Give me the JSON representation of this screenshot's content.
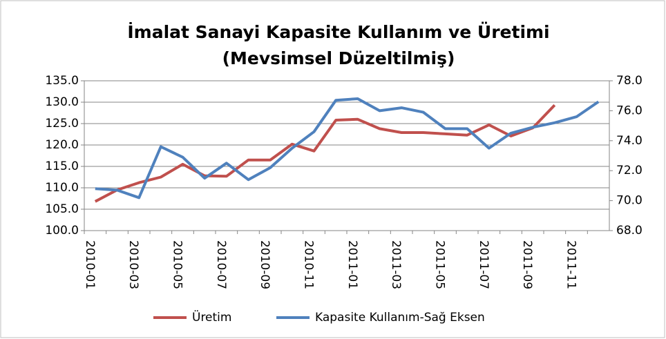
{
  "chart_data": {
    "type": "line",
    "title": "İmalat Sanayi Kapasite Kullanım ve Üretimi",
    "subtitle": "(Mevsimsel Düzeltilmiş)",
    "categories": [
      "2010-01",
      null,
      "2010-03",
      null,
      "2010-05",
      null,
      "2010-07",
      null,
      "2010-09",
      null,
      "2010-11",
      null,
      "2011-01",
      null,
      "2011-03",
      null,
      "2011-05",
      null,
      "2011-07",
      null,
      "2011-09",
      null,
      "2011-11",
      null
    ],
    "series": [
      {
        "name": "Üretim",
        "color": "#c0504d",
        "values": [
          106.8,
          109.5,
          111.2,
          112.5,
          115.5,
          112.8,
          112.7,
          116.5,
          116.5,
          120.2,
          118.6,
          125.8,
          126.0,
          123.8,
          122.9,
          122.9,
          122.6,
          122.3,
          124.7,
          122.1,
          124.0,
          129.3,
          null,
          null
        ]
      },
      {
        "name": "Kapasite Kullanım-Sağ Eksen",
        "color": "#4f81bd",
        "axis": "y2",
        "values": [
          70.8,
          70.7,
          70.2,
          73.6,
          72.9,
          71.5,
          72.5,
          71.4,
          72.2,
          73.5,
          74.6,
          76.7,
          76.8,
          76.0,
          76.2,
          75.9,
          74.8,
          74.8,
          73.5,
          74.5,
          74.9,
          75.2,
          75.6,
          76.6
        ]
      }
    ],
    "ylim": [
      100,
      135
    ],
    "yticks": [
      {
        "value": 100,
        "label": "100.0"
      },
      {
        "value": 105,
        "label": "105.0"
      },
      {
        "value": 110,
        "label": "110.0"
      },
      {
        "value": 115,
        "label": "115.0"
      },
      {
        "value": 120,
        "label": "120.0"
      },
      {
        "value": 125,
        "label": "125.0"
      },
      {
        "value": 130,
        "label": "130.0"
      },
      {
        "value": 135,
        "label": "135.0"
      }
    ],
    "y2lim": [
      68,
      78
    ],
    "y2ticks": [
      {
        "value": 68,
        "label": "68.0"
      },
      {
        "value": 70,
        "label": "70.0"
      },
      {
        "value": 72,
        "label": "72.0"
      },
      {
        "value": 74,
        "label": "74.0"
      },
      {
        "value": 76,
        "label": "76.0"
      },
      {
        "value": 78,
        "label": "78.0"
      }
    ],
    "grid": true,
    "legend": "bottom"
  }
}
